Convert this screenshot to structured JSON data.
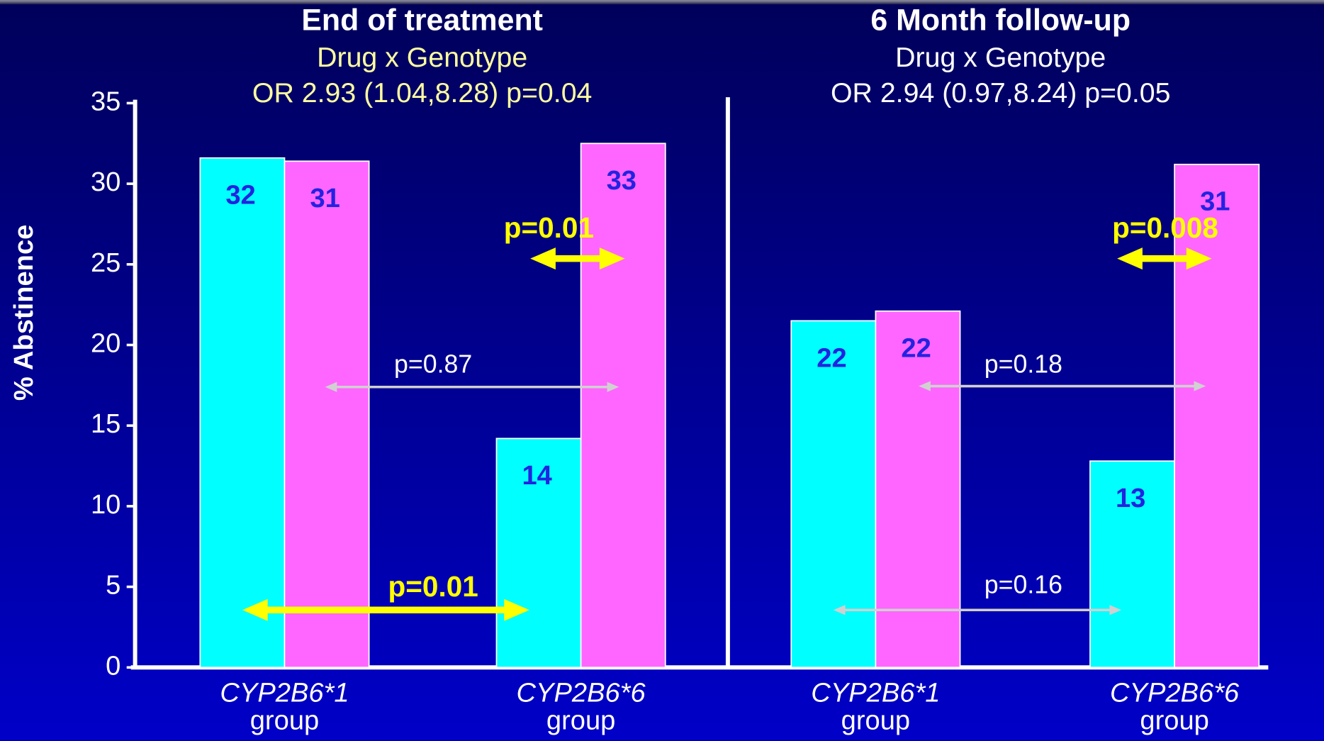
{
  "chart_data": [
    {
      "type": "bar",
      "title": "End of treatment",
      "subtitle": "Drug x Genotype",
      "test_result": "OR 2.93 (1.04,8.28) p=0.04",
      "y_label": "% Abstinence",
      "categories": [
        "CYP2B6*1 group",
        "CYP2B6*6 group"
      ],
      "series": [
        {
          "color": "#00ffff",
          "values": [
            31.6,
            14.2
          ],
          "value_labels": [
            "32",
            "14"
          ]
        },
        {
          "color": "#ff66ff",
          "values": [
            31.4,
            32.5
          ],
          "value_labels": [
            "31",
            "33"
          ]
        }
      ],
      "ylim": [
        0,
        35
      ],
      "yticks": [
        0,
        5,
        10,
        15,
        20,
        25,
        30,
        35
      ],
      "annotations": [
        "p=0.01",
        "p=0.87",
        "p=0.01"
      ]
    },
    {
      "type": "bar",
      "title": "6 Month follow-up",
      "subtitle": "Drug x Genotype",
      "test_result": "OR 2.94 (0.97,8.24) p=0.05",
      "categories": [
        "CYP2B6*1 group",
        "CYP2B6*6 group"
      ],
      "series": [
        {
          "color": "#00ffff",
          "values": [
            21.5,
            12.8
          ],
          "value_labels": [
            "22",
            "13"
          ]
        },
        {
          "color": "#ff66ff",
          "values": [
            22.1,
            31.2
          ],
          "value_labels": [
            "22",
            "31"
          ]
        }
      ],
      "ylim": [
        0,
        35
      ],
      "annotations": [
        "p=0.008",
        "p=0.18",
        "p=0.16"
      ]
    }
  ]
}
